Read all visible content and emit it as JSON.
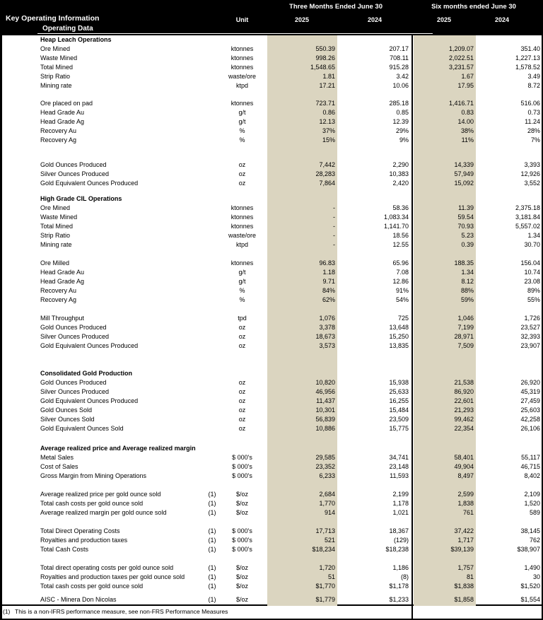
{
  "colors": {
    "highlight": "#DBD5C0",
    "header_bg": "#000000",
    "header_fg": "#ffffff"
  },
  "header": {
    "title": "Key Operating Information",
    "subtitle": "Operating Data",
    "unit_label": "Unit",
    "period_groups": [
      {
        "label": "Three Months Ended June 30",
        "years": [
          "2025",
          "2024"
        ]
      },
      {
        "label": "Six months ended June 30",
        "years": [
          "2025",
          "2024"
        ]
      }
    ]
  },
  "table": {
    "rows": [
      {
        "t": "s",
        "l": "Heap Leach Operations"
      },
      {
        "t": "d",
        "l": "Ore Mined",
        "u": "ktonnes",
        "v": [
          "550.39",
          "207.17",
          "1,209.07",
          "351.40"
        ]
      },
      {
        "t": "d",
        "l": "Waste Mined",
        "u": "ktonnes",
        "v": [
          "998.26",
          "708.11",
          "2,022.51",
          "1,227.13"
        ]
      },
      {
        "t": "d",
        "l": "Total Mined",
        "u": "ktonnes",
        "v": [
          "1,548.65",
          "915.28",
          "3,231.57",
          "1,578.52"
        ]
      },
      {
        "t": "d",
        "l": "Strip Ratio",
        "u": "waste/ore",
        "v": [
          "1.81",
          "3.42",
          "1.67",
          "3.49"
        ]
      },
      {
        "t": "d",
        "l": "Mining rate",
        "u": "ktpd",
        "v": [
          "17.21",
          "10.06",
          "17.95",
          "8.72"
        ]
      },
      {
        "t": "sp",
        "h": 12
      },
      {
        "t": "d",
        "l": "Ore placed on pad",
        "u": "ktonnes",
        "v": [
          "723.71",
          "285.18",
          "1,416.71",
          "516.06"
        ]
      },
      {
        "t": "d",
        "l": "Head Grade Au",
        "u": "g/t",
        "v": [
          "0.86",
          "0.85",
          "0.83",
          "0.73"
        ]
      },
      {
        "t": "d",
        "l": "Head Grade Ag",
        "u": "g/t",
        "v": [
          "12.13",
          "12.39",
          "14.00",
          "11.24"
        ]
      },
      {
        "t": "d",
        "l": "Recovery Au",
        "u": "%",
        "v": [
          "37%",
          "29%",
          "38%",
          "28%"
        ]
      },
      {
        "t": "d",
        "l": "Recovery Ag",
        "u": "%",
        "v": [
          "15%",
          "9%",
          "11%",
          "7%"
        ]
      },
      {
        "t": "sp",
        "h": 22
      },
      {
        "t": "d",
        "l": "Gold Ounces Produced",
        "u": "oz",
        "v": [
          "7,442",
          "2,290",
          "14,339",
          "3,393"
        ]
      },
      {
        "t": "d",
        "l": "Silver Ounces Produced",
        "u": "oz",
        "v": [
          "28,283",
          "10,383",
          "57,949",
          "12,926"
        ]
      },
      {
        "t": "d",
        "l": "Gold Equivalent Ounces Produced",
        "u": "oz",
        "v": [
          "7,864",
          "2,420",
          "15,092",
          "3,552"
        ]
      },
      {
        "t": "sp",
        "h": 9
      },
      {
        "t": "s",
        "l": "High Grade CIL Operations"
      },
      {
        "t": "d",
        "l": "Ore Mined",
        "u": "ktonnes",
        "v": [
          "-",
          "58.36",
          "11.39",
          "2,375.18"
        ]
      },
      {
        "t": "d",
        "l": "Waste Mined",
        "u": "ktonnes",
        "v": [
          "-",
          "1,083.34",
          "59.54",
          "3,181.84"
        ]
      },
      {
        "t": "d",
        "l": "Total Mined",
        "u": "ktonnes",
        "v": [
          "-",
          "1,141.70",
          "70.93",
          "5,557.02"
        ]
      },
      {
        "t": "d",
        "l": "Strip Ratio",
        "u": "waste/ore",
        "v": [
          "-",
          "18.56",
          "5.23",
          "1.34"
        ]
      },
      {
        "t": "d",
        "l": "Mining rate",
        "u": "ktpd",
        "v": [
          "-",
          "12.55",
          "0.39",
          "30.70"
        ]
      },
      {
        "t": "sp",
        "h": 13
      },
      {
        "t": "d",
        "l": "Ore Milled",
        "u": "ktonnes",
        "v": [
          "96.83",
          "65.96",
          "188.35",
          "156.04"
        ]
      },
      {
        "t": "d",
        "l": "Head Grade Au",
        "u": "g/t",
        "v": [
          "1.18",
          "7.08",
          "1.34",
          "10.74"
        ]
      },
      {
        "t": "d",
        "l": "Head Grade Ag",
        "u": "g/t",
        "v": [
          "9.71",
          "12.86",
          "8.12",
          "23.08"
        ]
      },
      {
        "t": "d",
        "l": "Recovery Au",
        "u": "%",
        "v": [
          "84%",
          "91%",
          "88%",
          "89%"
        ]
      },
      {
        "t": "d",
        "l": "Recovery Ag",
        "u": "%",
        "v": [
          "62%",
          "54%",
          "59%",
          "55%"
        ]
      },
      {
        "t": "sp",
        "h": 13
      },
      {
        "t": "d",
        "l": "Mill Throughput",
        "u": "tpd",
        "v": [
          "1,076",
          "725",
          "1,046",
          "1,726"
        ]
      },
      {
        "t": "d",
        "l": "Gold Ounces Produced",
        "u": "oz",
        "v": [
          "3,378",
          "13,648",
          "7,199",
          "23,527"
        ]
      },
      {
        "t": "d",
        "l": "Silver Ounces Produced",
        "u": "oz",
        "v": [
          "18,673",
          "15,250",
          "28,971",
          "32,393"
        ]
      },
      {
        "t": "d",
        "l": "Gold Equivalent Ounces Produced",
        "u": "oz",
        "v": [
          "3,573",
          "13,835",
          "7,509",
          "23,907"
        ]
      },
      {
        "t": "sp",
        "h": 26
      },
      {
        "t": "s",
        "l": "Consolidated Gold Production"
      },
      {
        "t": "d",
        "l": "Gold Ounces Produced",
        "u": "oz",
        "v": [
          "10,820",
          "15,938",
          "21,538",
          "26,920"
        ]
      },
      {
        "t": "d",
        "l": "Silver Ounces Produced",
        "u": "oz",
        "v": [
          "46,956",
          "25,633",
          "86,920",
          "45,319"
        ]
      },
      {
        "t": "d",
        "l": "Gold Equivalent Ounces Produced",
        "u": "oz",
        "v": [
          "11,437",
          "16,255",
          "22,601",
          "27,459"
        ]
      },
      {
        "t": "d",
        "l": "Gold Ounces Sold",
        "u": "oz",
        "v": [
          "10,301",
          "15,484",
          "21,293",
          "25,603"
        ]
      },
      {
        "t": "d",
        "l": "Silver Ounces Sold",
        "u": "oz",
        "v": [
          "56,839",
          "23,509",
          "99,462",
          "42,258"
        ]
      },
      {
        "t": "d",
        "l": "Gold Equivalent Ounces Sold",
        "u": "oz",
        "v": [
          "10,886",
          "15,775",
          "22,354",
          "26,106"
        ]
      },
      {
        "t": "sp",
        "h": 15
      },
      {
        "t": "s",
        "l": "Average realized price and Average realized margin"
      },
      {
        "t": "d",
        "l": "Metal Sales",
        "u": "$ 000's",
        "v": [
          "29,585",
          "34,741",
          "58,401",
          "55,117"
        ]
      },
      {
        "t": "d",
        "l": "Cost of Sales",
        "u": "$ 000's",
        "v": [
          "23,352",
          "23,148",
          "49,904",
          "46,715"
        ]
      },
      {
        "t": "d",
        "l": "Gross Margin from Mining Operations",
        "u": "$ 000's",
        "v": [
          "6,233",
          "11,593",
          "8,497",
          "8,402"
        ]
      },
      {
        "t": "sp",
        "h": 13
      },
      {
        "t": "d",
        "l": "Average realized price per gold ounce sold",
        "fn": "(1)",
        "u": "$/oz",
        "v": [
          "2,684",
          "2,199",
          "2,599",
          "2,109"
        ]
      },
      {
        "t": "d",
        "l": "Total cash costs per gold ounce sold",
        "fn": "(1)",
        "u": "$/oz",
        "v": [
          "1,770",
          "1,178",
          "1,838",
          "1,520"
        ]
      },
      {
        "t": "d",
        "l": "Average realized margin per gold ounce sold",
        "fn": "(1)",
        "u": "$/oz",
        "v": [
          "914",
          "1,021",
          "761",
          "589"
        ]
      },
      {
        "t": "sp",
        "h": 13
      },
      {
        "t": "d",
        "l": "Total Direct Operating Costs",
        "fn": "(1)",
        "u": "$ 000's",
        "v": [
          "17,713",
          "18,367",
          "37,422",
          "38,145"
        ]
      },
      {
        "t": "d",
        "l": "Royalties and production taxes",
        "fn": "(1)",
        "u": "$ 000's",
        "v": [
          "521",
          "(129)",
          "1,717",
          "762"
        ]
      },
      {
        "t": "d",
        "l": "Total Cash Costs",
        "fn": "(1)",
        "u": "$ 000's",
        "v": [
          "$18,234",
          "$18,238",
          "$39,139",
          "$38,907"
        ]
      },
      {
        "t": "sp",
        "h": 13
      },
      {
        "t": "d",
        "l": "Total direct operating costs per gold ounce sold",
        "fn": "(1)",
        "u": "$/oz",
        "v": [
          "1,720",
          "1,186",
          "1,757",
          "1,490"
        ]
      },
      {
        "t": "d",
        "l": "Royalties and production taxes per gold ounce sold",
        "fn": "(1)",
        "u": "$/oz",
        "v": [
          "51",
          "(8)",
          "81",
          "30"
        ]
      },
      {
        "t": "d",
        "l": "Total cash costs per gold ounce sold",
        "fn": "(1)",
        "u": "$/oz",
        "v": [
          "$1,770",
          "$1,178",
          "$1,838",
          "$1,520"
        ]
      },
      {
        "t": "sp",
        "h": 6
      },
      {
        "t": "d",
        "l": "AISC - Minera Don Nicolas",
        "fn": "(1)",
        "u": "$/oz",
        "v": [
          "$1,779",
          "$1,233",
          "$1,858",
          "$1,554"
        ]
      }
    ]
  },
  "footnote": {
    "marker": "(1)",
    "text": "This is a non-IFRS performance measure, see non-FRS Performance Measures"
  }
}
